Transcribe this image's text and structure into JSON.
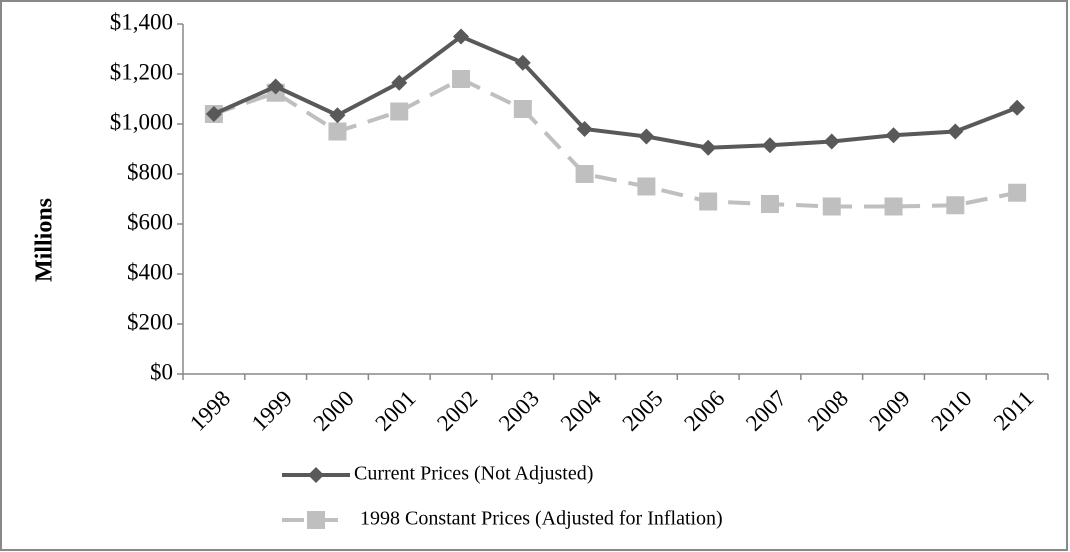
{
  "chart_data": {
    "type": "line",
    "y_label": "Millions",
    "categories": [
      "1998",
      "1999",
      "2000",
      "2001",
      "2002",
      "2003",
      "2004",
      "2005",
      "2006",
      "2007",
      "2008",
      "2009",
      "2010",
      "2011"
    ],
    "series": [
      {
        "name": "Current Prices (Not Adjusted)",
        "color": "#595959",
        "marker": "diamond",
        "line_style": "solid",
        "values": [
          1040,
          1150,
          1035,
          1165,
          1350,
          1245,
          980,
          950,
          905,
          915,
          930,
          955,
          970,
          1065
        ]
      },
      {
        "name": "1998 Constant Prices (Adjusted for Inflation)",
        "color": "#bfbfbf",
        "marker": "square",
        "line_style": "dashed",
        "values": [
          1040,
          1125,
          970,
          1050,
          1180,
          1060,
          800,
          750,
          690,
          680,
          670,
          670,
          675,
          725
        ]
      }
    ],
    "ylim": [
      0,
      1400
    ],
    "yticks": [
      {
        "value": 0,
        "label": "$0"
      },
      {
        "value": 200,
        "label": "$200"
      },
      {
        "value": 400,
        "label": "$400"
      },
      {
        "value": 600,
        "label": "$600"
      },
      {
        "value": 800,
        "label": "$800"
      },
      {
        "value": 1000,
        "label": "$1,000"
      },
      {
        "value": 1200,
        "label": "$1,200"
      },
      {
        "value": 1400,
        "label": "$1,400"
      }
    ],
    "grid": false,
    "legend": "bottom"
  }
}
